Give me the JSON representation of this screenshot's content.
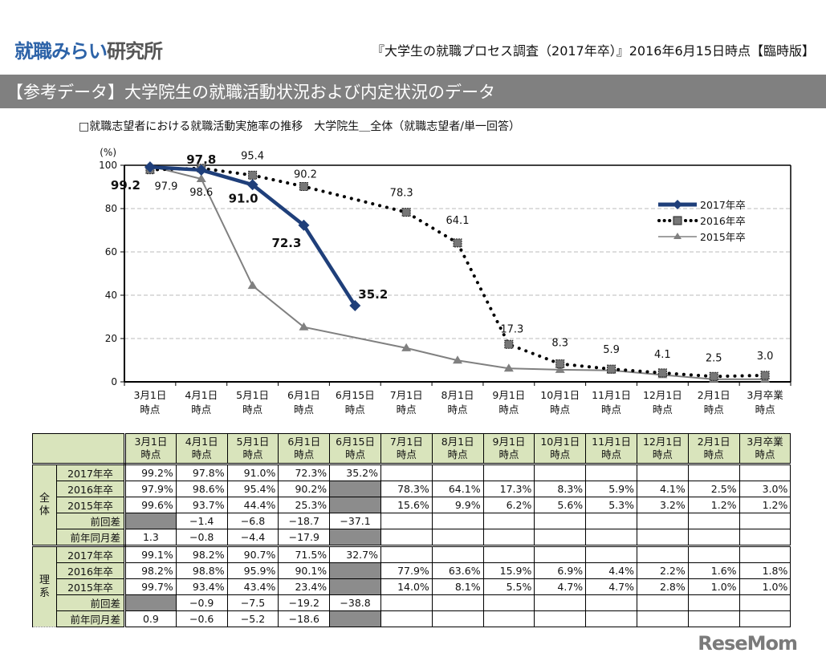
{
  "header": {
    "logo_part1": "就職みらい",
    "logo_part2": "研究所",
    "report_title": "『大学生の就職プロセス調査（2017年卒）』2016年6月15日時点【臨時版】"
  },
  "section": {
    "title": "【参考データ】大学院生の就職活動状況および内定状況のデータ"
  },
  "chart_caption": "□就職志望者における就職活動実施率の推移　大学院生＿全体（就職志望者/単一回答）",
  "chart_data": {
    "type": "line",
    "title": "就職志望者における就職活動実施率の推移 大学院生＿全体（就職志望者/単一回答）",
    "ylabel": "(%)",
    "xlabel": "",
    "ylim": [
      0,
      100
    ],
    "yticks": [
      0,
      20,
      40,
      60,
      80,
      100
    ],
    "grid": true,
    "legend_position": "right",
    "categories": [
      [
        "3月1日",
        "時点"
      ],
      [
        "4月1日",
        "時点"
      ],
      [
        "5月1日",
        "時点"
      ],
      [
        "6月1日",
        "時点"
      ],
      [
        "6月15日",
        "時点"
      ],
      [
        "7月1日",
        "時点"
      ],
      [
        "8月1日",
        "時点"
      ],
      [
        "9月1日",
        "時点"
      ],
      [
        "10月1日",
        "時点"
      ],
      [
        "11月1日",
        "時点"
      ],
      [
        "12月1日",
        "時点"
      ],
      [
        "2月1日",
        "時点"
      ],
      [
        "3月卒業",
        "時点"
      ]
    ],
    "series": [
      {
        "name": "2017年卒",
        "color": "#1f3f7a",
        "style": "solid-thick-diamond",
        "values": [
          99.2,
          97.8,
          91.0,
          72.3,
          35.2,
          null,
          null,
          null,
          null,
          null,
          null,
          null,
          null
        ],
        "labels": [
          "99.2",
          "97.8",
          "91.0",
          "72.3",
          "35.2"
        ]
      },
      {
        "name": "2016年卒",
        "color": "#111111",
        "style": "dotted-square",
        "values": [
          97.9,
          98.6,
          95.4,
          90.2,
          null,
          78.3,
          64.1,
          17.3,
          8.3,
          5.9,
          4.1,
          2.5,
          3.0
        ],
        "labels": [
          "97.9",
          "98.6",
          "95.4",
          "90.2",
          null,
          "78.3",
          "64.1",
          "17.3",
          "8.3",
          "5.9",
          "4.1",
          "2.5",
          "3.0"
        ]
      },
      {
        "name": "2015年卒",
        "color": "#808080",
        "style": "thin-triangle",
        "values": [
          99.6,
          93.7,
          44.4,
          25.3,
          null,
          15.6,
          9.9,
          6.2,
          5.6,
          5.3,
          3.2,
          1.2,
          1.2
        ],
        "labels": []
      }
    ]
  },
  "table": {
    "columns": [
      [
        "3月1日",
        "時点"
      ],
      [
        "4月1日",
        "時点"
      ],
      [
        "5月1日",
        "時点"
      ],
      [
        "6月1日",
        "時点"
      ],
      [
        "6月15日",
        "時点"
      ],
      [
        "7月1日",
        "時点"
      ],
      [
        "8月1日",
        "時点"
      ],
      [
        "9月1日",
        "時点"
      ],
      [
        "10月1日",
        "時点"
      ],
      [
        "11月1日",
        "時点"
      ],
      [
        "12月1日",
        "時点"
      ],
      [
        "2月1日",
        "時点"
      ],
      [
        "3月卒業",
        "時点"
      ]
    ],
    "groups": [
      {
        "name_lines": [
          "全",
          "体"
        ],
        "rows": [
          {
            "label": "2017年卒",
            "cells": [
              "99.2%",
              "97.8%",
              "91.0%",
              "72.3%",
              "35.2%",
              "",
              "",
              "",
              "",
              "",
              "",
              "",
              ""
            ]
          },
          {
            "label": "2016年卒",
            "cells": [
              "97.9%",
              "98.6%",
              "95.4%",
              "90.2%",
              "#gray",
              "78.3%",
              "64.1%",
              "17.3%",
              "8.3%",
              "5.9%",
              "4.1%",
              "2.5%",
              "3.0%"
            ]
          },
          {
            "label": "2015年卒",
            "cells": [
              "99.6%",
              "93.7%",
              "44.4%",
              "25.3%",
              "#gray",
              "15.6%",
              "9.9%",
              "6.2%",
              "5.6%",
              "5.3%",
              "3.2%",
              "1.2%",
              "1.2%"
            ]
          },
          {
            "label": "前回差",
            "cells": [
              "#gray",
              "−1.4",
              "−6.8",
              "−18.7",
              "−37.1",
              "",
              "",
              "",
              "",
              "",
              "",
              "",
              ""
            ]
          },
          {
            "label": "前年同月差",
            "cells": [
              "1.3",
              "−0.8",
              "−4.4",
              "−17.9",
              "#gray",
              "",
              "",
              "",
              "",
              "",
              "",
              "",
              ""
            ]
          }
        ]
      },
      {
        "name_lines": [
          "理",
          "系"
        ],
        "rows": [
          {
            "label": "2017年卒",
            "cells": [
              "99.1%",
              "98.2%",
              "90.7%",
              "71.5%",
              "32.7%",
              "",
              "",
              "",
              "",
              "",
              "",
              "",
              ""
            ]
          },
          {
            "label": "2016年卒",
            "cells": [
              "98.2%",
              "98.8%",
              "95.9%",
              "90.1%",
              "#gray",
              "77.9%",
              "63.6%",
              "15.9%",
              "6.9%",
              "4.4%",
              "2.2%",
              "1.6%",
              "1.8%"
            ]
          },
          {
            "label": "2015年卒",
            "cells": [
              "99.7%",
              "93.4%",
              "43.4%",
              "23.4%",
              "#gray",
              "14.0%",
              "8.1%",
              "5.5%",
              "4.7%",
              "4.7%",
              "2.8%",
              "1.0%",
              "1.0%"
            ]
          },
          {
            "label": "前回差",
            "cells": [
              "#gray",
              "−0.9",
              "−7.5",
              "−19.2",
              "−38.8",
              "",
              "",
              "",
              "",
              "",
              "",
              "",
              ""
            ]
          },
          {
            "label": "前年同月差",
            "cells": [
              "0.9",
              "−0.6",
              "−5.2",
              "−18.6",
              "#gray",
              "",
              "",
              "",
              "",
              "",
              "",
              "",
              ""
            ]
          }
        ]
      }
    ]
  },
  "watermark": "ReseMom"
}
